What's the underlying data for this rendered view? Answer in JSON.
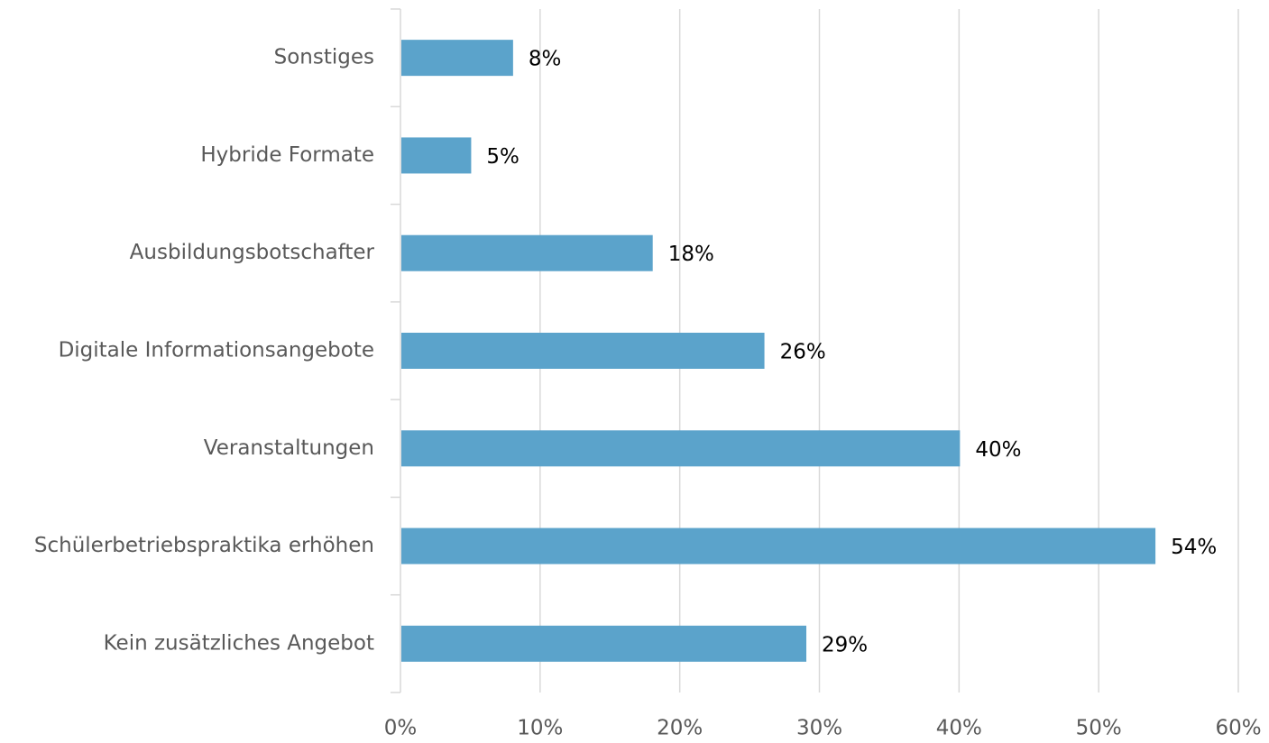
{
  "chart_data": {
    "type": "bar",
    "orientation": "horizontal",
    "categories": [
      "Sonstiges",
      "Hybride Formate",
      "Ausbildungsbotschafter",
      "Digitale Informationsangebote",
      "Veranstaltungen",
      "Schülerbetriebspraktika erhöhen",
      "Kein zusätzliches Angebot"
    ],
    "values": [
      8,
      5,
      18,
      26,
      40,
      54,
      29
    ],
    "value_labels": [
      "8%",
      "5%",
      "18%",
      "26%",
      "40%",
      "54%",
      "29%"
    ],
    "color": "#5ba3cb",
    "xlim": [
      0,
      60
    ],
    "xticks": [
      {
        "value": 0,
        "label": "0%"
      },
      {
        "value": 10,
        "label": "10%"
      },
      {
        "value": 20,
        "label": "20%"
      },
      {
        "value": 30,
        "label": "30%"
      },
      {
        "value": 40,
        "label": "40%"
      },
      {
        "value": 50,
        "label": "50%"
      },
      {
        "value": 60,
        "label": "60%"
      }
    ],
    "grid": true
  }
}
